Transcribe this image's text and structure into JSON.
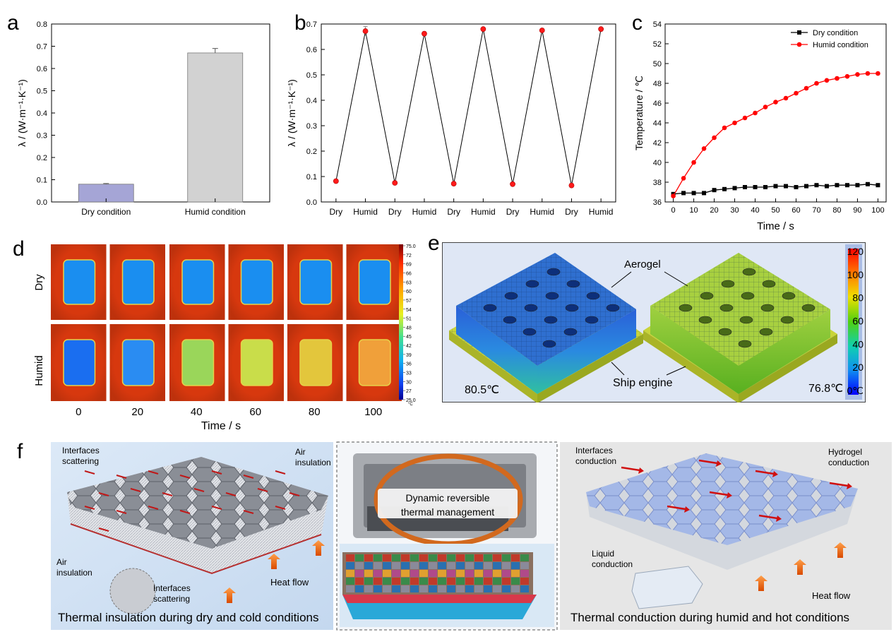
{
  "panels": {
    "a": "a",
    "b": "b",
    "c": "c",
    "d": "d",
    "e": "e",
    "f": "f"
  },
  "chart_data": [
    {
      "panel": "a",
      "type": "bar",
      "categories": [
        "Dry condition",
        "Humid condition"
      ],
      "values": [
        0.08,
        0.67
      ],
      "errors": [
        0.003,
        0.02
      ],
      "colors": [
        "#a5a5d6",
        "#d2d2d2"
      ],
      "ylabel": "λ / (W·m⁻¹·K⁻¹)",
      "ylim": [
        0,
        0.8
      ],
      "yticks": [
        "0.0",
        "0.1",
        "0.2",
        "0.3",
        "0.4",
        "0.5",
        "0.6",
        "0.7",
        "0.8"
      ]
    },
    {
      "panel": "b",
      "type": "line",
      "categories": [
        "Dry",
        "Humid",
        "Dry",
        "Humid",
        "Dry",
        "Humid",
        "Dry",
        "Humid",
        "Dry",
        "Humid"
      ],
      "values": [
        0.082,
        0.672,
        0.075,
        0.662,
        0.072,
        0.68,
        0.07,
        0.675,
        0.065,
        0.68
      ],
      "errors": [
        0.003,
        0.018,
        0.003,
        0.005,
        0.003,
        0.005,
        0.003,
        0.004,
        0.005,
        0.005
      ],
      "ylabel": "λ / (W·m⁻¹·K⁻¹)",
      "ylim": [
        0,
        0.7
      ],
      "yticks": [
        "0.0",
        "0.1",
        "0.2",
        "0.3",
        "0.4",
        "0.5",
        "0.6",
        "0.7"
      ]
    },
    {
      "panel": "c",
      "type": "line",
      "xlabel": "Time / s",
      "ylabel": "Temperature / ℃",
      "xlim": [
        -4,
        104
      ],
      "ylim": [
        36,
        54
      ],
      "xticks": [
        "0",
        "10",
        "20",
        "30",
        "40",
        "50",
        "60",
        "70",
        "80",
        "90",
        "100"
      ],
      "yticks": [
        "36",
        "38",
        "40",
        "42",
        "44",
        "46",
        "48",
        "50",
        "52",
        "54"
      ],
      "x": [
        0,
        5,
        10,
        15,
        20,
        25,
        30,
        35,
        40,
        45,
        50,
        55,
        60,
        65,
        70,
        75,
        80,
        85,
        90,
        95,
        100
      ],
      "series": [
        {
          "name": "Dry condition",
          "color": "#000000",
          "marker": "square",
          "values": [
            36.8,
            36.9,
            36.9,
            36.9,
            37.2,
            37.3,
            37.4,
            37.5,
            37.5,
            37.5,
            37.6,
            37.6,
            37.5,
            37.6,
            37.7,
            37.6,
            37.7,
            37.7,
            37.7,
            37.8,
            37.7
          ]
        },
        {
          "name": "Humid condition",
          "color": "#ff0000",
          "marker": "circle",
          "values": [
            36.6,
            38.4,
            40.0,
            41.4,
            42.5,
            43.5,
            44.0,
            44.5,
            45.0,
            45.6,
            46.1,
            46.5,
            47.0,
            47.5,
            48.0,
            48.3,
            48.5,
            48.7,
            48.9,
            49.0,
            49.0
          ]
        }
      ],
      "legend": "top-right"
    }
  ],
  "panel_d": {
    "rows": [
      "Dry",
      "Humid"
    ],
    "times": [
      "0",
      "20",
      "40",
      "60",
      "80",
      "100"
    ],
    "xlabel": "Time / s",
    "colorbar_ticks": [
      "75.0",
      "72",
      "69",
      "66",
      "63",
      "60",
      "57",
      "54",
      "51",
      "48",
      "45",
      "42",
      "39",
      "36",
      "33",
      "30",
      "27",
      "25.0"
    ],
    "colorbar_unit": "°C",
    "tile_colors": {
      "dry": [
        "#1a8ef0",
        "#1a8ef0",
        "#1a8ef0",
        "#1a8ef0",
        "#1a8ef0",
        "#1a8ef0"
      ],
      "humid": [
        "#1a6ef0",
        "#2a8cf2",
        "#9ad65a",
        "#c9dd4a",
        "#e3c63c",
        "#f0a03a"
      ]
    }
  },
  "panel_e": {
    "labels": {
      "aerogel": "Aerogel",
      "engine": "Ship engine"
    },
    "temps": [
      "80.5℃",
      "76.8℃"
    ],
    "colorbar_ticks": [
      "120",
      "100",
      "80",
      "60",
      "40",
      "20",
      "0℃"
    ]
  },
  "panel_f": {
    "left": {
      "caption": "Thermal insulation during dry and cold conditions",
      "notes": [
        "Interfaces\nscattering",
        "Air\ninsulation",
        "Air\ninsulation",
        "Interfaces\nscattering",
        "Heat flow"
      ]
    },
    "middle": {
      "text": "Dynamic reversible\nthermal management"
    },
    "right": {
      "caption": "Thermal conduction during humid and hot conditions",
      "notes": [
        "Interfaces\nconduction",
        "Hydrogel\nconduction",
        "Liquid\nconduction",
        "Heat flow"
      ]
    }
  }
}
